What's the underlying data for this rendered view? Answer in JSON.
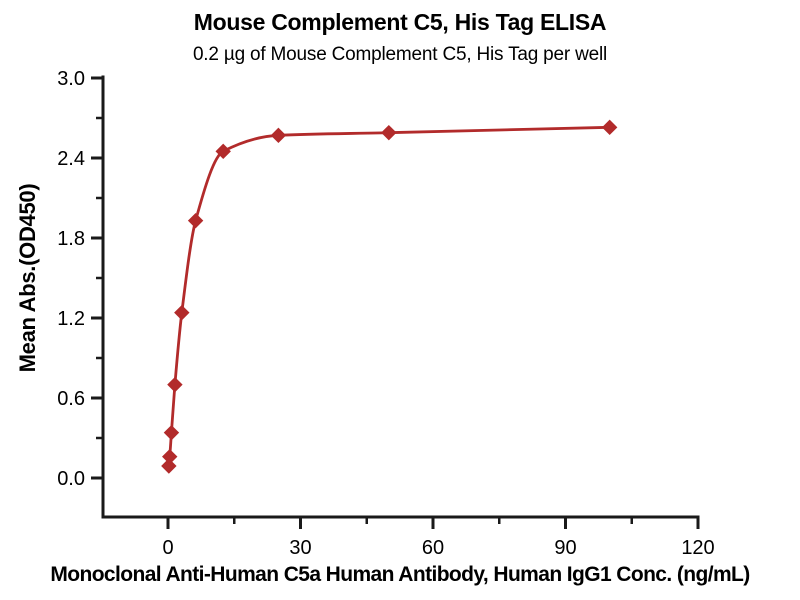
{
  "chart_data": {
    "type": "scatter",
    "title": "Mouse Complement C5, His Tag ELISA",
    "subtitle": "0.2 µg of Mouse Complement C5, His Tag per well",
    "xlabel": "Monoclonal Anti-Human C5a Human Antibody, Human IgG1 Conc. (ng/mL)",
    "ylabel": "Mean Abs.(OD450)",
    "series": [
      {
        "x": [
          0.195,
          0.391,
          0.781,
          1.563,
          3.125,
          6.25,
          12.5,
          25,
          50,
          100
        ],
        "y": [
          0.09,
          0.16,
          0.34,
          0.7,
          1.24,
          1.93,
          2.45,
          2.57,
          2.59,
          2.63
        ]
      }
    ],
    "marker": "diamond",
    "has_fit_line": true,
    "grid": false,
    "legend": "none",
    "xlim": [
      -15,
      120
    ],
    "ylim": [
      -0.3,
      3.0
    ],
    "x_major_ticks": [
      0,
      30,
      60,
      90,
      120
    ],
    "x_tick_labels": [
      "0",
      "30",
      "60",
      "90",
      "120"
    ],
    "x_minor_ticks": [
      15,
      45,
      75,
      105
    ],
    "y_major_ticks": [
      0.0,
      0.6,
      1.2,
      1.8,
      2.4,
      3.0
    ],
    "y_tick_labels": [
      "0.0",
      "0.6",
      "1.2",
      "1.8",
      "2.4",
      "3.0"
    ],
    "y_minor_ticks": [
      0.3,
      0.9,
      1.5,
      2.1,
      2.7
    ],
    "colors": {
      "series": "#b22b2b",
      "axis": "#1a1a1a",
      "text": "#000000",
      "background": "#ffffff"
    }
  }
}
